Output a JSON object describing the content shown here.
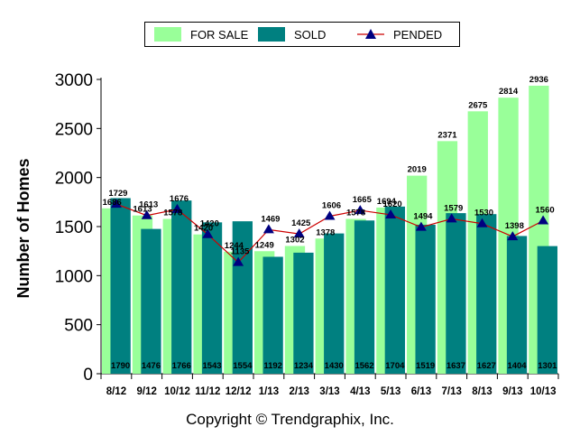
{
  "chart_data": {
    "type": "bar",
    "categories": [
      "8/12",
      "9/12",
      "10/12",
      "11/12",
      "12/12",
      "1/13",
      "2/13",
      "3/13",
      "4/13",
      "5/13",
      "6/13",
      "7/13",
      "8/13",
      "9/13",
      "10/13"
    ],
    "series": [
      {
        "name": "FOR SALE",
        "kind": "bar",
        "color": "#99ff99",
        "values": [
          1686,
          1613,
          1578,
          1420,
          1244,
          1249,
          1302,
          1378,
          1578,
          1694,
          2019,
          2371,
          2675,
          2814,
          2936
        ],
        "labels": [
          "1686",
          "1613",
          "1578",
          "1420",
          "1244",
          "1249",
          "1302",
          "1378",
          "1578",
          "1694",
          "2019",
          "2371",
          "2675",
          "2814",
          "2936"
        ]
      },
      {
        "name": "SOLD",
        "kind": "bar",
        "color": "#008080",
        "values": [
          1790,
          1476,
          1766,
          1543,
          1554,
          1192,
          1234,
          1430,
          1562,
          1704,
          1519,
          1637,
          1627,
          1404,
          1301
        ],
        "labels": [
          "1790",
          "1476",
          "1766",
          "1543",
          "1554",
          "1192",
          "1234",
          "1430",
          "1562",
          "1704",
          "1519",
          "1637",
          "1627",
          "1404",
          "1301"
        ]
      },
      {
        "name": "PENDED",
        "kind": "line",
        "color": "#cc0000",
        "marker_color": "#000080",
        "values": [
          1729,
          1613,
          1676,
          1420,
          1135,
          1469,
          1425,
          1606,
          1665,
          1620,
          1494,
          1579,
          1530,
          1398,
          1560
        ],
        "labels": [
          "1729",
          "1613",
          "1676",
          "1420",
          "1135",
          "1469",
          "1425",
          "1606",
          "1665",
          "1620",
          "1494",
          "1579",
          "1530",
          "1398",
          "1560"
        ]
      }
    ],
    "ylabel": "Number of Homes",
    "yticks": [
      "0",
      "500",
      "1000",
      "1500",
      "2000",
      "2500",
      "3000"
    ],
    "ylim": [
      0,
      3000
    ],
    "legend_position": "top",
    "grid": false,
    "background": "#ffffff"
  },
  "legend": {
    "for_sale_label": "FOR SALE",
    "sold_label": "SOLD",
    "pended_label": "PENDED"
  },
  "copyright": "Copyright © Trendgraphix, Inc."
}
